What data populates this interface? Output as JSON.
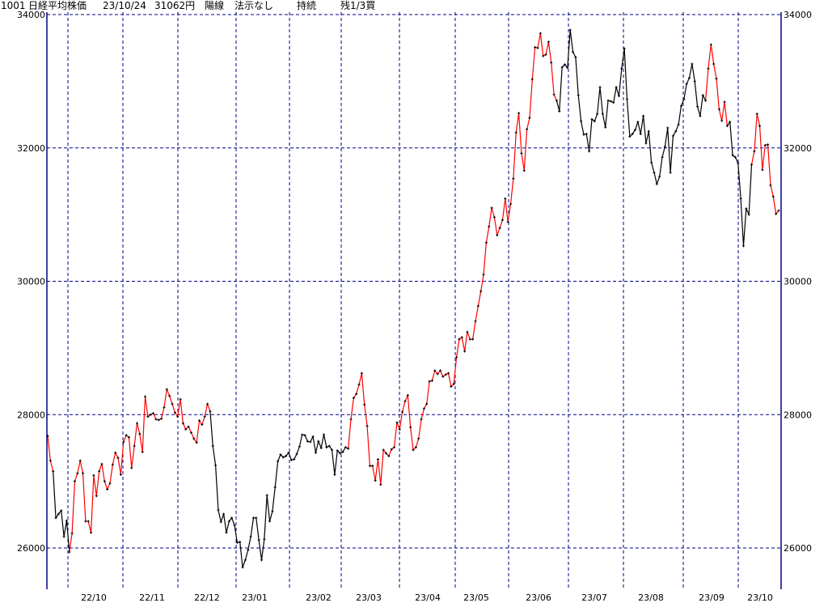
{
  "header": {
    "code": "1001",
    "name": "日経平均株価",
    "date": "23/10/24",
    "price": "31062円",
    "candle": "陽線",
    "signal": "法示なし",
    "state": "持続",
    "position": "残1/3買"
  },
  "colors": {
    "up_trend": "#ff0000",
    "down_trend": "#000000",
    "grid": "#00008b",
    "axis": "#00008b",
    "marker": "#000000"
  },
  "chart_data": {
    "type": "line",
    "title": "日経平均株価",
    "ylim": [
      25400,
      34000
    ],
    "yticks": [
      34000,
      32000,
      30000,
      28000,
      26000
    ],
    "xticks": [
      "22/10",
      "22/11",
      "22/12",
      "23/01",
      "23/02",
      "23/03",
      "23/04",
      "23/05",
      "23/06",
      "23/07",
      "23/08",
      "23/09",
      "23/10"
    ],
    "grid": true,
    "axes": "left-and-right",
    "series_note_colors": "r = red segment, k = black segment",
    "points": [
      [
        27680,
        "r"
      ],
      [
        27310,
        "r"
      ],
      [
        27150,
        "r"
      ],
      [
        26450,
        "k"
      ],
      [
        26510,
        "k"
      ],
      [
        26560,
        "k"
      ],
      [
        26170,
        "k"
      ],
      [
        26410,
        "k"
      ],
      [
        25940,
        "k"
      ],
      [
        26220,
        "r"
      ],
      [
        27000,
        "r"
      ],
      [
        27120,
        "r"
      ],
      [
        27310,
        "r"
      ],
      [
        27120,
        "r"
      ],
      [
        26400,
        "r"
      ],
      [
        26400,
        "r"
      ],
      [
        26230,
        "r"
      ],
      [
        27090,
        "r"
      ],
      [
        26780,
        "r"
      ],
      [
        27150,
        "r"
      ],
      [
        27260,
        "r"
      ],
      [
        27000,
        "r"
      ],
      [
        26880,
        "r"
      ],
      [
        26970,
        "r"
      ],
      [
        27250,
        "r"
      ],
      [
        27430,
        "r"
      ],
      [
        27350,
        "r"
      ],
      [
        27100,
        "r"
      ],
      [
        27590,
        "r"
      ],
      [
        27690,
        "r"
      ],
      [
        27660,
        "r"
      ],
      [
        27200,
        "r"
      ],
      [
        27530,
        "r"
      ],
      [
        27870,
        "r"
      ],
      [
        27710,
        "r"
      ],
      [
        27440,
        "r"
      ],
      [
        28270,
        "r"
      ],
      [
        27970,
        "r"
      ],
      [
        28000,
        "r"
      ],
      [
        28020,
        "r"
      ],
      [
        27930,
        "r"
      ],
      [
        27920,
        "r"
      ],
      [
        27940,
        "r"
      ],
      [
        28110,
        "r"
      ],
      [
        28380,
        "r"
      ],
      [
        28280,
        "r"
      ],
      [
        28160,
        "r"
      ],
      [
        28030,
        "r"
      ],
      [
        27970,
        "r"
      ],
      [
        28230,
        "r"
      ],
      [
        27870,
        "r"
      ],
      [
        27780,
        "r"
      ],
      [
        27820,
        "r"
      ],
      [
        27730,
        "r"
      ],
      [
        27640,
        "r"
      ],
      [
        27580,
        "r"
      ],
      [
        27910,
        "r"
      ],
      [
        27850,
        "r"
      ],
      [
        27970,
        "r"
      ],
      [
        28160,
        "r"
      ],
      [
        28050,
        "r"
      ],
      [
        27530,
        "k"
      ],
      [
        27240,
        "k"
      ],
      [
        26570,
        "k"
      ],
      [
        26390,
        "k"
      ],
      [
        26510,
        "k"
      ],
      [
        26230,
        "k"
      ],
      [
        26400,
        "k"
      ],
      [
        26450,
        "k"
      ],
      [
        26340,
        "k"
      ],
      [
        26080,
        "k"
      ],
      [
        26090,
        "k"
      ],
      [
        25710,
        "k"
      ],
      [
        25820,
        "k"
      ],
      [
        25970,
        "k"
      ],
      [
        26170,
        "k"
      ],
      [
        26450,
        "k"
      ],
      [
        26450,
        "k"
      ],
      [
        26120,
        "k"
      ],
      [
        25820,
        "k"
      ],
      [
        26130,
        "k"
      ],
      [
        26790,
        "k"
      ],
      [
        26400,
        "k"
      ],
      [
        26550,
        "k"
      ],
      [
        26910,
        "k"
      ],
      [
        27300,
        "k"
      ],
      [
        27400,
        "k"
      ],
      [
        27360,
        "k"
      ],
      [
        27380,
        "k"
      ],
      [
        27430,
        "k"
      ],
      [
        27320,
        "k"
      ],
      [
        27330,
        "k"
      ],
      [
        27410,
        "k"
      ],
      [
        27520,
        "k"
      ],
      [
        27700,
        "k"
      ],
      [
        27690,
        "k"
      ],
      [
        27600,
        "k"
      ],
      [
        27590,
        "k"
      ],
      [
        27670,
        "k"
      ],
      [
        27430,
        "k"
      ],
      [
        27600,
        "k"
      ],
      [
        27500,
        "k"
      ],
      [
        27700,
        "k"
      ],
      [
        27510,
        "k"
      ],
      [
        27530,
        "k"
      ],
      [
        27470,
        "k"
      ],
      [
        27100,
        "k"
      ],
      [
        27460,
        "k"
      ],
      [
        27420,
        "k"
      ],
      [
        27440,
        "k"
      ],
      [
        27510,
        "k"
      ],
      [
        27490,
        "k"
      ],
      [
        27930,
        "r"
      ],
      [
        28250,
        "r"
      ],
      [
        28310,
        "r"
      ],
      [
        28450,
        "r"
      ],
      [
        28620,
        "r"
      ],
      [
        28150,
        "r"
      ],
      [
        27830,
        "r"
      ],
      [
        27230,
        "r"
      ],
      [
        27230,
        "r"
      ],
      [
        27010,
        "r"
      ],
      [
        27330,
        "r"
      ],
      [
        26950,
        "r"
      ],
      [
        27470,
        "r"
      ],
      [
        27420,
        "r"
      ],
      [
        27380,
        "r"
      ],
      [
        27480,
        "r"
      ],
      [
        27510,
        "r"
      ],
      [
        27880,
        "r"
      ],
      [
        27780,
        "r"
      ],
      [
        28040,
        "r"
      ],
      [
        28200,
        "r"
      ],
      [
        28290,
        "r"
      ],
      [
        27810,
        "r"
      ],
      [
        27470,
        "r"
      ],
      [
        27510,
        "r"
      ],
      [
        27640,
        "r"
      ],
      [
        27930,
        "r"
      ],
      [
        28090,
        "r"
      ],
      [
        28160,
        "r"
      ],
      [
        28500,
        "r"
      ],
      [
        28510,
        "r"
      ],
      [
        28660,
        "r"
      ],
      [
        28610,
        "r"
      ],
      [
        28660,
        "r"
      ],
      [
        28570,
        "r"
      ],
      [
        28600,
        "r"
      ],
      [
        28620,
        "r"
      ],
      [
        28420,
        "r"
      ],
      [
        28460,
        "r"
      ],
      [
        28860,
        "r"
      ],
      [
        29130,
        "r"
      ],
      [
        29160,
        "r"
      ],
      [
        28950,
        "r"
      ],
      [
        29240,
        "r"
      ],
      [
        29130,
        "r"
      ],
      [
        29130,
        "r"
      ],
      [
        29400,
        "r"
      ],
      [
        29630,
        "r"
      ],
      [
        29850,
        "r"
      ],
      [
        30100,
        "r"
      ],
      [
        30580,
        "r"
      ],
      [
        30820,
        "r"
      ],
      [
        31100,
        "r"
      ],
      [
        30960,
        "r"
      ],
      [
        30690,
        "r"
      ],
      [
        30800,
        "r"
      ],
      [
        30920,
        "r"
      ],
      [
        31240,
        "r"
      ],
      [
        30890,
        "r"
      ],
      [
        31160,
        "r"
      ],
      [
        31540,
        "r"
      ],
      [
        32230,
        "r"
      ],
      [
        32520,
        "r"
      ],
      [
        31920,
        "r"
      ],
      [
        31660,
        "r"
      ],
      [
        32280,
        "r"
      ],
      [
        32450,
        "r"
      ],
      [
        33030,
        "r"
      ],
      [
        33510,
        "r"
      ],
      [
        33500,
        "r"
      ],
      [
        33720,
        "r"
      ],
      [
        33380,
        "r"
      ],
      [
        33400,
        "r"
      ],
      [
        33590,
        "r"
      ],
      [
        33280,
        "r"
      ],
      [
        32800,
        "r"
      ],
      [
        32710,
        "r"
      ],
      [
        32550,
        "k"
      ],
      [
        33210,
        "k"
      ],
      [
        33250,
        "k"
      ],
      [
        33200,
        "k"
      ],
      [
        33770,
        "k"
      ],
      [
        33440,
        "k"
      ],
      [
        33360,
        "k"
      ],
      [
        32790,
        "k"
      ],
      [
        32400,
        "k"
      ],
      [
        32200,
        "k"
      ],
      [
        32210,
        "k"
      ],
      [
        31950,
        "k"
      ],
      [
        32430,
        "k"
      ],
      [
        32400,
        "k"
      ],
      [
        32510,
        "k"
      ],
      [
        32910,
        "k"
      ],
      [
        32510,
        "k"
      ],
      [
        32310,
        "k"
      ],
      [
        32710,
        "k"
      ],
      [
        32700,
        "k"
      ],
      [
        32680,
        "k"
      ],
      [
        32910,
        "k"
      ],
      [
        32780,
        "k"
      ],
      [
        33190,
        "k"
      ],
      [
        33490,
        "k"
      ],
      [
        32730,
        "k"
      ],
      [
        32170,
        "k"
      ],
      [
        32210,
        "k"
      ],
      [
        32270,
        "k"
      ],
      [
        32390,
        "k"
      ],
      [
        32210,
        "k"
      ],
      [
        32480,
        "k"
      ],
      [
        32070,
        "k"
      ],
      [
        32250,
        "k"
      ],
      [
        31780,
        "k"
      ],
      [
        31630,
        "k"
      ],
      [
        31460,
        "k"
      ],
      [
        31570,
        "k"
      ],
      [
        31860,
        "k"
      ],
      [
        32020,
        "k"
      ],
      [
        32300,
        "k"
      ],
      [
        31630,
        "k"
      ],
      [
        32180,
        "k"
      ],
      [
        32250,
        "k"
      ],
      [
        32350,
        "k"
      ],
      [
        32630,
        "k"
      ],
      [
        32730,
        "k"
      ],
      [
        32960,
        "k"
      ],
      [
        33050,
        "k"
      ],
      [
        33260,
        "k"
      ],
      [
        33000,
        "k"
      ],
      [
        32620,
        "k"
      ],
      [
        32480,
        "k"
      ],
      [
        32790,
        "k"
      ],
      [
        32710,
        "k"
      ],
      [
        33190,
        "r"
      ],
      [
        33550,
        "r"
      ],
      [
        33260,
        "r"
      ],
      [
        33040,
        "r"
      ],
      [
        32580,
        "r"
      ],
      [
        32410,
        "r"
      ],
      [
        32690,
        "r"
      ],
      [
        32330,
        "r"
      ],
      [
        32390,
        "k"
      ],
      [
        31890,
        "k"
      ],
      [
        31860,
        "k"
      ],
      [
        31770,
        "k"
      ],
      [
        31240,
        "k"
      ],
      [
        30530,
        "k"
      ],
      [
        31090,
        "k"
      ],
      [
        31000,
        "k"
      ],
      [
        31750,
        "k"
      ],
      [
        31950,
        "r"
      ],
      [
        32510,
        "r"
      ],
      [
        32330,
        "r"
      ],
      [
        31670,
        "r"
      ],
      [
        32040,
        "r"
      ],
      [
        32050,
        "r"
      ],
      [
        31440,
        "r"
      ],
      [
        31270,
        "r"
      ],
      [
        31010,
        "r"
      ],
      [
        31060,
        "r"
      ]
    ]
  }
}
